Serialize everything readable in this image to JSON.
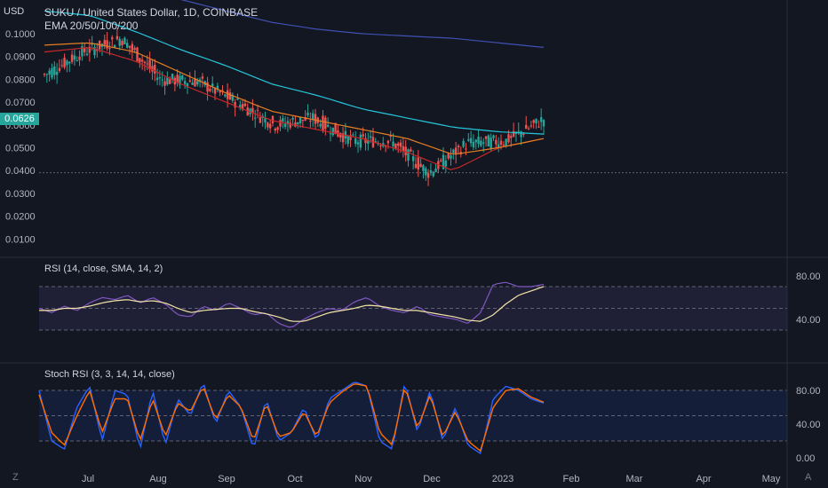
{
  "header": {
    "title": "SUKU / United States Dollar, 1D, COINBASE",
    "ema_label": "EMA 20/50/100/200",
    "currency": "USD",
    "current_price": "0.0626"
  },
  "indicators": {
    "rsi_label": "RSI (14, close, SMA, 14, 2)",
    "stoch_label": "Stoch RSI (3, 3, 14, 14, close)"
  },
  "footer": {
    "left_icon": "Z",
    "right_icon": "A"
  },
  "colors": {
    "background": "#131722",
    "up": "#26a69a",
    "down": "#ef5350",
    "ema20": "#c62828",
    "ema50": "#e67e22",
    "ema100": "#26c6da",
    "ema200": "#3f51b5",
    "rsi": "#7e57c2",
    "rsi_ma": "#f5e6a8",
    "stoch_k": "#2962ff",
    "stoch_d": "#ff6d00"
  },
  "chart_data": [
    {
      "type": "candlestick",
      "title": "SUKU / United States Dollar, 1D, COINBASE",
      "ylabel": "USD",
      "y_ticks": [
        "0.1000",
        "0.0900",
        "0.0800",
        "0.0700",
        "0.0600",
        "0.0500",
        "0.0400",
        "0.0300",
        "0.0200",
        "0.0100"
      ],
      "x_ticks": [
        "Jul",
        "Aug",
        "Sep",
        "Oct",
        "Nov",
        "Dec",
        "2023",
        "Feb",
        "Mar",
        "Apr",
        "May"
      ],
      "ylim": [
        0.0,
        0.105
      ],
      "last_price": 0.0626,
      "close_anchors": [
        {
          "date": "Jun",
          "close": 0.082
        },
        {
          "date": "Jul",
          "close": 0.092
        },
        {
          "date": "Aug",
          "close": 0.098
        },
        {
          "date": "Aug mid",
          "close": 0.08
        },
        {
          "date": "Sep",
          "close": 0.079
        },
        {
          "date": "Oct",
          "close": 0.07
        },
        {
          "date": "Oct mid",
          "close": 0.06
        },
        {
          "date": "Nov",
          "close": 0.063
        },
        {
          "date": "Nov mid",
          "close": 0.053
        },
        {
          "date": "Dec",
          "close": 0.053
        },
        {
          "date": "Dec end",
          "close": 0.039
        },
        {
          "date": "2023",
          "close": 0.052
        },
        {
          "date": "2023 mid",
          "close": 0.053
        },
        {
          "date": "last",
          "close": 0.0626
        }
      ],
      "emas": [
        {
          "name": "EMA 20",
          "anchors": [
            0.092,
            0.094,
            0.088,
            0.078,
            0.07,
            0.062,
            0.058,
            0.054,
            0.048,
            0.04,
            0.05,
            0.054
          ]
        },
        {
          "name": "EMA 50",
          "anchors": [
            0.095,
            0.096,
            0.092,
            0.083,
            0.074,
            0.066,
            0.062,
            0.058,
            0.054,
            0.047,
            0.05,
            0.054
          ]
        },
        {
          "name": "EMA 100",
          "anchors": [
            0.11,
            0.108,
            0.101,
            0.093,
            0.086,
            0.078,
            0.073,
            0.067,
            0.063,
            0.059,
            0.057,
            0.056
          ]
        },
        {
          "name": "EMA 200",
          "anchors": [
            0.13,
            0.125,
            0.12,
            0.115,
            0.11,
            0.105,
            0.102,
            0.1,
            0.099,
            0.098,
            0.096,
            0.094
          ]
        }
      ]
    },
    {
      "type": "line",
      "title": "RSI (14, close, SMA, 14, 2)",
      "y_ticks": [
        "80.00",
        "40.00"
      ],
      "band": [
        30,
        70
      ],
      "series": [
        {
          "name": "RSI",
          "values": [
            50,
            46,
            52,
            48,
            55,
            60,
            58,
            62,
            55,
            60,
            54,
            44,
            42,
            52,
            48,
            55,
            50,
            44,
            46,
            36,
            32,
            40,
            46,
            50,
            48,
            56,
            60,
            52,
            48,
            46,
            52,
            44,
            42,
            40,
            36,
            46,
            72,
            74,
            70,
            70,
            72
          ]
        },
        {
          "name": "RSI MA",
          "values": [
            48,
            48,
            50,
            50,
            52,
            55,
            57,
            58,
            56,
            57,
            55,
            50,
            46,
            48,
            49,
            50,
            50,
            47,
            45,
            42,
            38,
            38,
            42,
            46,
            48,
            50,
            53,
            52,
            50,
            48,
            48,
            46,
            44,
            42,
            39,
            38,
            44,
            54,
            62,
            66,
            70
          ]
        }
      ]
    },
    {
      "type": "line",
      "title": "Stoch RSI (3, 3, 14, 14, close)",
      "y_ticks": [
        "80.00",
        "40.00",
        "0.00"
      ],
      "band": [
        20,
        80
      ],
      "series": [
        {
          "name": "K",
          "values": [
            80,
            20,
            10,
            60,
            85,
            20,
            80,
            75,
            10,
            80,
            15,
            70,
            50,
            90,
            40,
            80,
            60,
            10,
            70,
            20,
            30,
            60,
            20,
            70,
            80,
            90,
            85,
            20,
            10,
            90,
            30,
            80,
            20,
            60,
            15,
            5,
            70,
            85,
            80,
            70,
            65
          ]
        },
        {
          "name": "D",
          "values": [
            75,
            30,
            15,
            50,
            80,
            30,
            70,
            70,
            20,
            70,
            25,
            65,
            55,
            85,
            45,
            75,
            60,
            20,
            65,
            25,
            30,
            55,
            25,
            65,
            78,
            88,
            85,
            30,
            15,
            85,
            35,
            75,
            25,
            55,
            20,
            8,
            60,
            80,
            82,
            72,
            66
          ]
        }
      ]
    }
  ]
}
